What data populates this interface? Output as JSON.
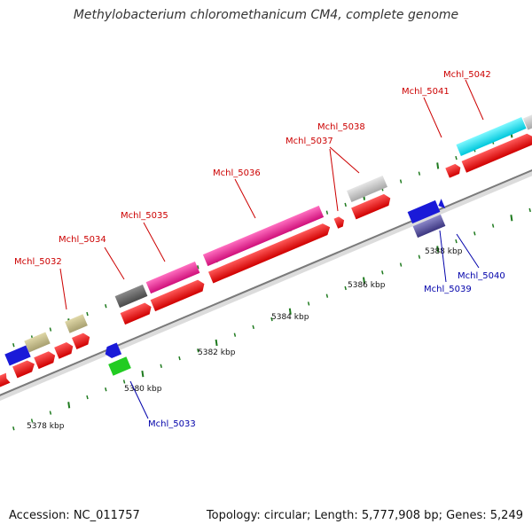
{
  "title": "Methylobacterium chloromethanicum CM4, complete genome",
  "footer": {
    "accession": "Accession: NC_011757",
    "stats": "Topology: circular; Length: 5,777,908 bp; Genes: 5,249"
  },
  "colors": {
    "forward_label": "#cc0000",
    "reverse_label": "#0000aa",
    "cds": "#ff0000",
    "backbone": "#888888",
    "tick": "#1e7a1e"
  },
  "scale_ticks": [
    "5378 kbp",
    "5380 kbp",
    "5382 kbp",
    "5384 kbp",
    "5386 kbp",
    "5388 kbp"
  ],
  "gene_labels": {
    "forward": [
      "Mchl_5032",
      "Mchl_5034",
      "Mchl_5035",
      "Mchl_5036",
      "Mchl_5037",
      "Mchl_5038",
      "Mchl_5041",
      "Mchl_5042"
    ],
    "reverse": [
      "Mchl_5033",
      "Mchl_5039",
      "Mchl_5040"
    ]
  }
}
